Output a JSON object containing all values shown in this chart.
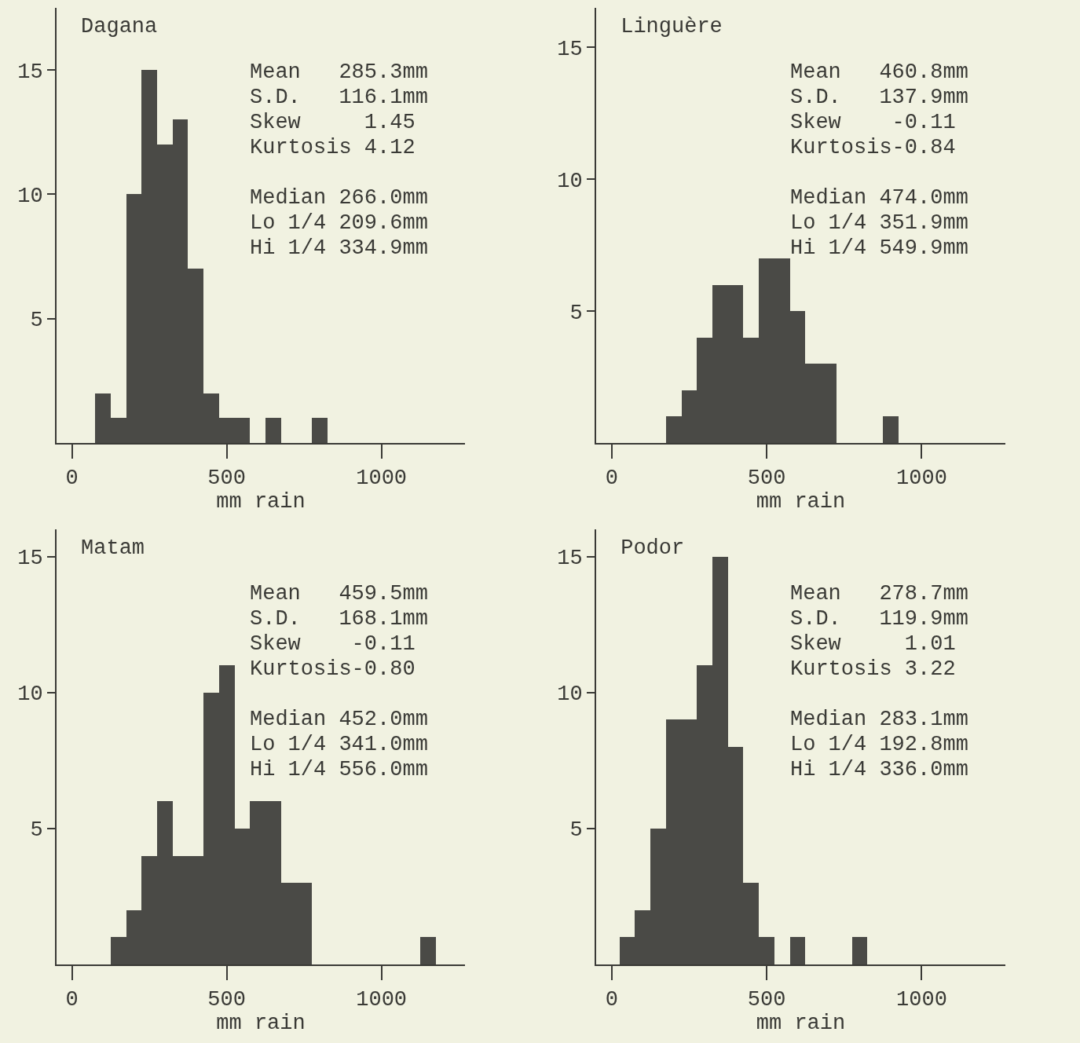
{
  "chart_data": [
    {
      "type": "histogram",
      "title": "Dagana",
      "xlabel": "mm rain",
      "color": "#4a4a46",
      "bins": [
        75,
        125,
        175,
        225,
        275,
        325,
        375,
        425,
        475,
        525,
        575,
        625,
        675,
        725,
        775,
        825
      ],
      "values": [
        2,
        1,
        10,
        15,
        12,
        13,
        7,
        2,
        1,
        1,
        0,
        1,
        0,
        0,
        1
      ],
      "xlim": [
        -50,
        1270
      ],
      "xticks": [
        0,
        500,
        1000
      ],
      "ylim": [
        0,
        17.5
      ],
      "yticks": [
        5,
        10,
        15
      ],
      "annotations": [
        "Mean   285.3mm",
        "S.D.   116.1mm",
        "Skew     1.45",
        "Kurtosis 4.12",
        "Median 266.0mm",
        "Lo 1/4 209.6mm",
        "Hi 1/4 334.9mm"
      ]
    },
    {
      "type": "histogram",
      "title": "Linguère",
      "xlabel": "mm rain",
      "color": "#4a4a46",
      "bins": [
        175,
        225,
        275,
        325,
        375,
        425,
        475,
        525,
        575,
        625,
        675,
        725,
        775,
        825,
        875,
        925
      ],
      "values": [
        1,
        2,
        4,
        6,
        6,
        4,
        7,
        7,
        5,
        3,
        3,
        0,
        0,
        0,
        1
      ],
      "xlim": [
        -50,
        1270
      ],
      "xticks": [
        0,
        500,
        1000
      ],
      "ylim": [
        0,
        16.5
      ],
      "yticks": [
        5,
        10,
        15
      ],
      "annotations": [
        "Mean   460.8mm",
        "S.D.   137.9mm",
        "Skew    -0.11",
        "Kurtosis-0.84",
        "Median 474.0mm",
        "Lo 1/4 351.9mm",
        "Hi 1/4 549.9mm"
      ]
    },
    {
      "type": "histogram",
      "title": "Matam",
      "xlabel": "mm rain",
      "color": "#4a4a46",
      "bins": [
        125,
        175,
        225,
        275,
        325,
        375,
        425,
        475,
        525,
        575,
        625,
        675,
        725,
        775,
        825,
        875,
        925,
        975,
        1025,
        1075,
        1125,
        1175
      ],
      "values": [
        1,
        2,
        4,
        6,
        4,
        4,
        10,
        11,
        5,
        6,
        6,
        3,
        3,
        0,
        0,
        0,
        0,
        0,
        0,
        0,
        1
      ],
      "xlim": [
        -50,
        1270
      ],
      "xticks": [
        0,
        500,
        1000
      ],
      "ylim": [
        0,
        16
      ],
      "yticks": [
        5,
        10,
        15
      ],
      "annotations": [
        "Mean   459.5mm",
        "S.D.   168.1mm",
        "Skew    -0.11",
        "Kurtosis-0.80",
        "Median 452.0mm",
        "Lo 1/4 341.0mm",
        "Hi 1/4 556.0mm"
      ]
    },
    {
      "type": "histogram",
      "title": "Podor",
      "xlabel": "mm rain",
      "color": "#4a4a46",
      "bins": [
        25,
        75,
        125,
        175,
        225,
        275,
        325,
        375,
        425,
        475,
        525,
        575,
        625,
        675,
        725,
        775,
        825
      ],
      "values": [
        1,
        2,
        5,
        9,
        9,
        11,
        15,
        8,
        3,
        1,
        0,
        1,
        0,
        0,
        0,
        1
      ],
      "xlim": [
        -50,
        1270
      ],
      "xticks": [
        0,
        500,
        1000
      ],
      "ylim": [
        0,
        16
      ],
      "yticks": [
        5,
        10,
        15
      ],
      "annotations": [
        "Mean   278.7mm",
        "S.D.   119.9mm",
        "Skew     1.01",
        "Kurtosis 3.22",
        "Median 283.1mm",
        "Lo 1/4 192.8mm",
        "Hi 1/4 336.0mm"
      ]
    }
  ]
}
